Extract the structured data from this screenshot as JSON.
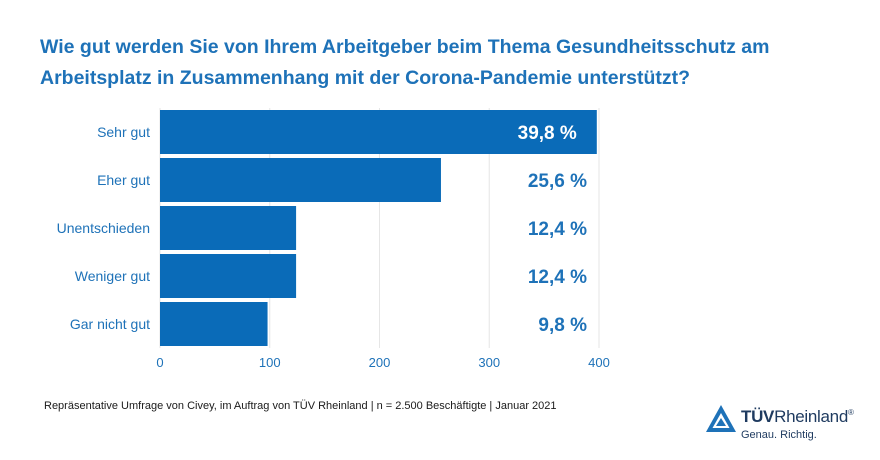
{
  "title_lines": [
    "Wie gut werden Sie von Ihrem Arbeitgeber beim Thema Gesundheitsschutz am",
    "Arbeitsplatz in Zusammenhang mit der Corona-Pandemie unterstützt?"
  ],
  "footnote": "Repräsentative Umfrage von Civey, im Auftrag von TÜV Rheinland | n = 2.500 Beschäftigte | Januar 2021",
  "logo": {
    "brand_bold": "TÜV",
    "brand_rest": "Rheinland",
    "registered": "®",
    "tagline": "Genau. Richtig."
  },
  "colors": {
    "bar": "#0a6bb8",
    "title": "#1e72b8",
    "value_label": "#1e72b8",
    "value_label_inside": "#ffffff",
    "category_label": "#1e72b8",
    "axis_label": "#1e72b8",
    "grid": "#e6e6e6"
  },
  "chart_data": {
    "type": "bar",
    "orientation": "horizontal",
    "categories": [
      "Sehr gut",
      "Eher gut",
      "Unentschieden",
      "Weniger gut",
      "Gar nicht gut"
    ],
    "values": [
      398,
      256,
      124,
      124,
      98
    ],
    "value_labels": [
      "39,8 %",
      "25,6 %",
      "12,4 %",
      "12,4 %",
      "9,8 %"
    ],
    "xlim": [
      0,
      400
    ],
    "xticks": [
      0,
      100,
      200,
      300,
      400
    ],
    "grid": true
  }
}
